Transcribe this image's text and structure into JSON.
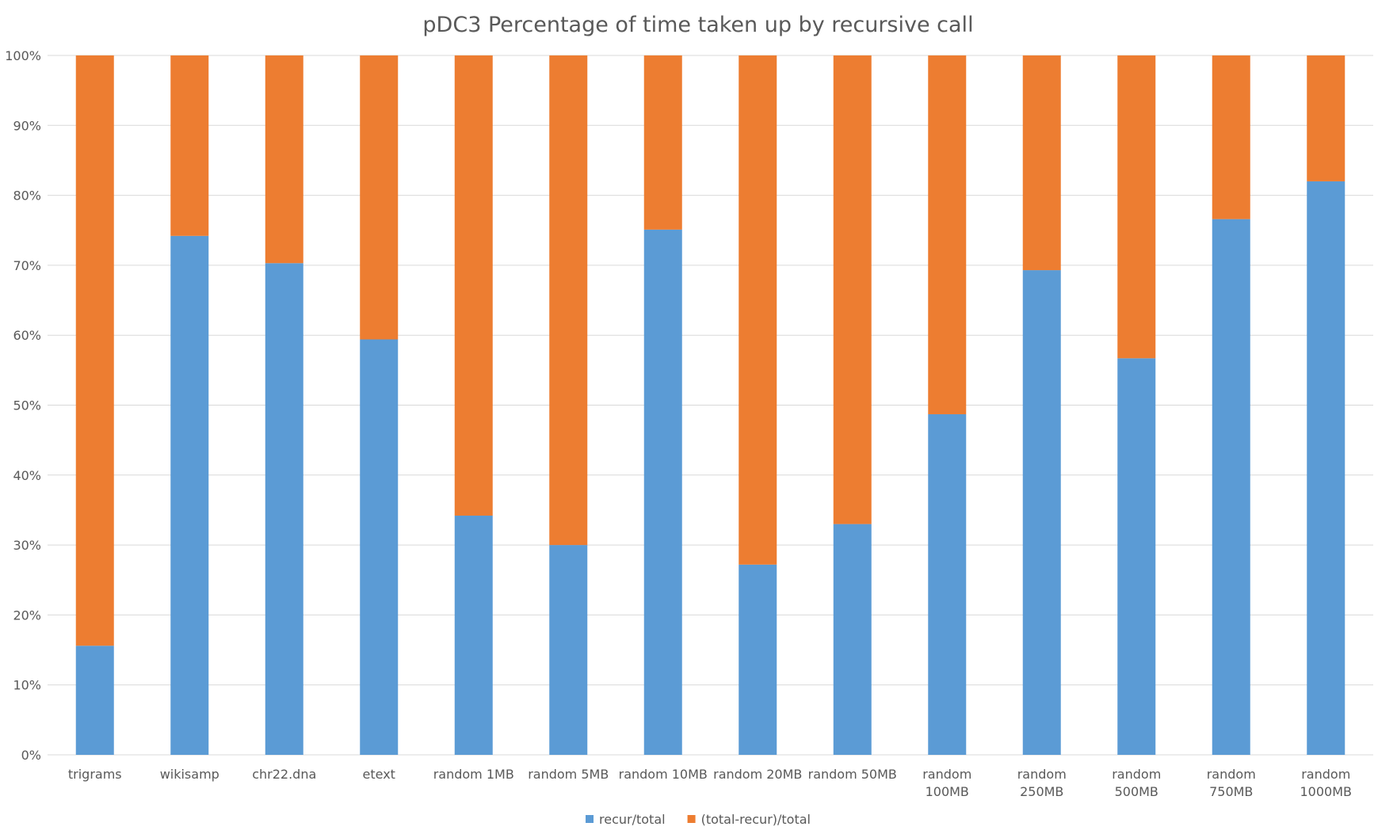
{
  "chart_data": {
    "type": "bar",
    "stacked": true,
    "percent": true,
    "title": "pDC3 Percentage of time taken up by recursive call",
    "xlabel": "",
    "ylabel": "",
    "ylim": [
      0,
      100
    ],
    "yticks": [
      "0%",
      "10%",
      "20%",
      "30%",
      "40%",
      "50%",
      "60%",
      "70%",
      "80%",
      "90%",
      "100%"
    ],
    "categories": [
      "trigrams",
      "wikisamp",
      "chr22.dna",
      "etext",
      "random 1MB",
      "random 5MB",
      "random 10MB",
      "random 20MB",
      "random 50MB",
      "random 100MB",
      "random 250MB",
      "random 500MB",
      "random 750MB",
      "random 1000MB"
    ],
    "series": [
      {
        "name": "recur/total",
        "color": "#5b9bd5",
        "values": [
          15.6,
          74.2,
          70.3,
          59.4,
          34.2,
          30.0,
          75.1,
          27.2,
          33.0,
          48.7,
          69.3,
          56.7,
          76.6,
          82.0
        ]
      },
      {
        "name": "(total-recur)/total",
        "color": "#ed7d31",
        "values": [
          84.4,
          25.8,
          29.7,
          40.6,
          65.8,
          70.0,
          24.9,
          72.8,
          67.0,
          51.3,
          30.7,
          43.3,
          23.4,
          18.0
        ]
      }
    ],
    "grid": true,
    "legend": "bottom"
  }
}
